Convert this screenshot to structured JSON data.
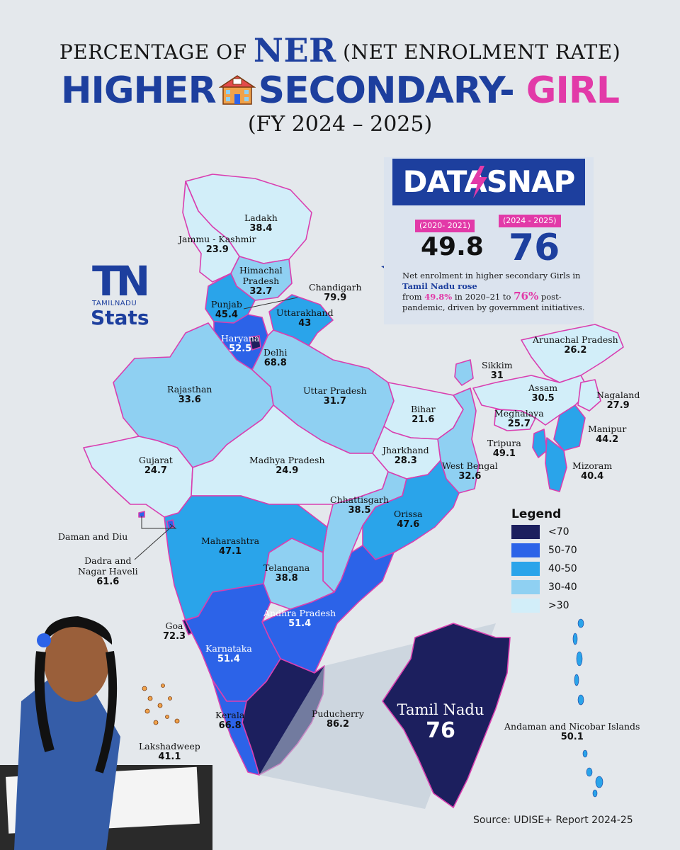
{
  "title": {
    "line1_prefix": "PERCENTAGE OF",
    "line1_highlight": "NER",
    "line1_suffix": "(NET ENROLMENT RATE)",
    "line2_main": "HIGHER",
    "line2_second": "SECONDARY-",
    "line2_highlight": "GIRL",
    "line3": "(FY 2024 – 2025)"
  },
  "logo": {
    "tn": "TN",
    "sub": "TAMILNADU",
    "stats": "Stats"
  },
  "datasnap": {
    "banner": "DATASNAP",
    "period_1": "(2020- 2021)",
    "value_1": "49.8",
    "period_2": "(2024 - 2025)",
    "value_2": "76",
    "desc_1": "Net enrolment in higher secondary Girls in",
    "desc_hl": "Tamil Nadu rose",
    "desc_2": "from",
    "desc_v1": "49.8%",
    "desc_3": "in 2020–21 to",
    "desc_v2": "76%",
    "desc_4": "post-pandemic, driven by government initiatives."
  },
  "states": [
    {
      "name": "Ladakh",
      "value": "38.4"
    },
    {
      "name": "Jammu - Kashmir",
      "value": "23.9"
    },
    {
      "name": "Himachal Pradesh",
      "value": "32.7"
    },
    {
      "name": "Chandigarh",
      "value": "79.9"
    },
    {
      "name": "Punjab",
      "value": "45.4"
    },
    {
      "name": "Uttarakhand",
      "value": "43"
    },
    {
      "name": "Haryana",
      "value": "52.5"
    },
    {
      "name": "Delhi",
      "value": "68.8"
    },
    {
      "name": "Rajasthan",
      "value": "33.6"
    },
    {
      "name": "Uttar Pradesh",
      "value": "31.7"
    },
    {
      "name": "Bihar",
      "value": "21.6"
    },
    {
      "name": "Sikkim",
      "value": "31"
    },
    {
      "name": "Arunachal Pradesh",
      "value": "26.2"
    },
    {
      "name": "Assam",
      "value": "30.5"
    },
    {
      "name": "Nagaland",
      "value": "27.9"
    },
    {
      "name": "Meghalaya",
      "value": "25.7"
    },
    {
      "name": "Manipur",
      "value": "44.2"
    },
    {
      "name": "Tripura",
      "value": "49.1"
    },
    {
      "name": "Mizoram",
      "value": "40.4"
    },
    {
      "name": "Jharkhand",
      "value": "28.3"
    },
    {
      "name": "West Bengal",
      "value": "32.6"
    },
    {
      "name": "Gujarat",
      "value": "24.7"
    },
    {
      "name": "Madhya Pradesh",
      "value": "24.9"
    },
    {
      "name": "Chhattisgarh",
      "value": "38.5"
    },
    {
      "name": "Orissa",
      "value": "47.6"
    },
    {
      "name": "Daman and Diu",
      "value": ""
    },
    {
      "name": "Dadra and Nagar Haveli",
      "value": "61.6"
    },
    {
      "name": "Maharashtra",
      "value": "47.1"
    },
    {
      "name": "Telangana",
      "value": "38.8"
    },
    {
      "name": "Andhra Pradesh",
      "value": "51.4"
    },
    {
      "name": "Goa",
      "value": "72.3"
    },
    {
      "name": "Karnataka",
      "value": "51.4"
    },
    {
      "name": "Kerala",
      "value": "66.8"
    },
    {
      "name": "Puducherry",
      "value": "86.2"
    },
    {
      "name": "Lakshadweep",
      "value": "41.1"
    },
    {
      "name": "Andaman and Nicobar Islands",
      "value": "50.1"
    },
    {
      "name": "Tamil Nadu",
      "value": "76"
    }
  ],
  "legend": {
    "title": "Legend",
    "items": [
      {
        "label": "<70",
        "color": "#1c1f5e"
      },
      {
        "label": "50-70",
        "color": "#2c63e8"
      },
      {
        "label": "40-50",
        "color": "#2aa4ea"
      },
      {
        "label": "30-40",
        "color": "#8fd0f2"
      },
      {
        "label": ">30",
        "color": "#d2eef9"
      }
    ]
  },
  "colors": {
    "accent_blue": "#1d3f9e",
    "accent_pink": "#e23aa8",
    "border": "#d93fb0",
    "background": "#e4e8ec"
  },
  "source": "Source: UDISE+ Report 2024-25"
}
